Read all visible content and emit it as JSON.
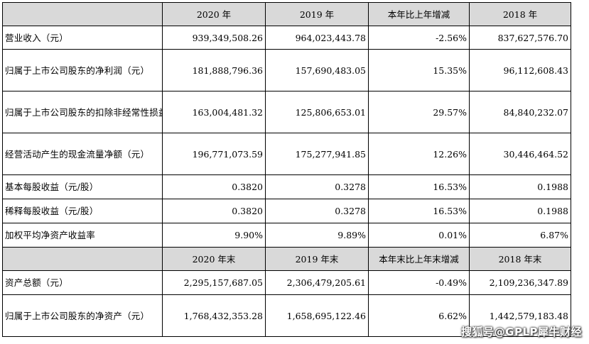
{
  "table": {
    "header1": [
      "",
      "2020 年",
      "2019 年",
      "本年比上年增减",
      "2018 年"
    ],
    "rows1": [
      {
        "label": "营业收入（元）",
        "v2020": "939,349,508.26",
        "v2019": "964,023,443.78",
        "change": "-2.56%",
        "v2018": "837,627,576.70"
      },
      {
        "label": "归属于上市公司股东的净利润（元）",
        "v2020": "181,888,796.36",
        "v2019": "157,690,483.05",
        "change": "15.35%",
        "v2018": "96,112,608.43"
      },
      {
        "label": "归属于上市公司股东的扣除非经常性损益的净利润（元）",
        "v2020": "163,004,481.32",
        "v2019": "125,806,653.01",
        "change": "29.57%",
        "v2018": "84,840,232.07"
      },
      {
        "label": "经营活动产生的现金流量净额（元）",
        "v2020": "196,771,073.59",
        "v2019": "175,277,941.85",
        "change": "12.26%",
        "v2018": "30,446,464.52"
      },
      {
        "label": "基本每股收益（元/股）",
        "v2020": "0.3820",
        "v2019": "0.3278",
        "change": "16.53%",
        "v2018": "0.1988"
      },
      {
        "label": "稀释每股收益（元/股）",
        "v2020": "0.3820",
        "v2019": "0.3278",
        "change": "16.53%",
        "v2018": "0.1988"
      },
      {
        "label": "加权平均净资产收益率",
        "v2020": "9.90%",
        "v2019": "9.89%",
        "change": "0.01%",
        "v2018": "6.87%"
      }
    ],
    "header2": [
      "",
      "2020 年末",
      "2019 年末",
      "本年末比上年末增减",
      "2018 年末"
    ],
    "rows2": [
      {
        "label": "资产总额（元）",
        "v2020": "2,295,157,687.05",
        "v2019": "2,306,479,205.61",
        "change": "-0.49%",
        "v2018": "2,109,236,347.89"
      },
      {
        "label": "归属于上市公司股东的净资产（元）",
        "v2020": "1,768,432,353.28",
        "v2019": "1,658,695,122.46",
        "change": "6.62%",
        "v2018": "1,442,579,183.48"
      }
    ]
  },
  "watermark": "搜狐号@GPLP犀牛财经"
}
